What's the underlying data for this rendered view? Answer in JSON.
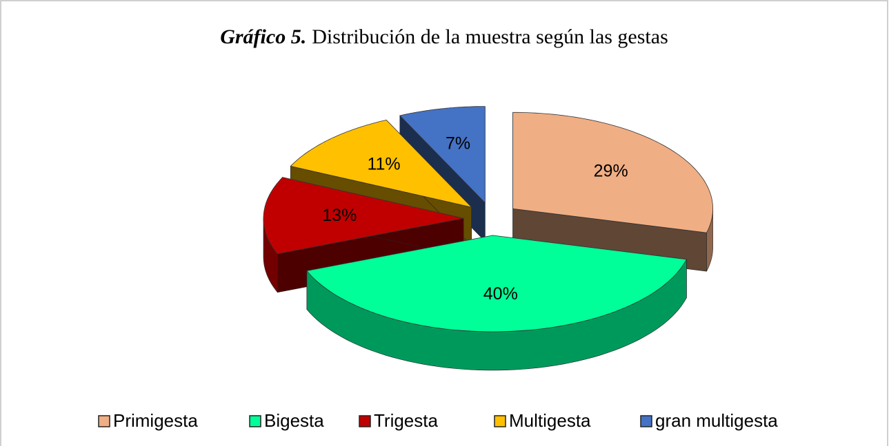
{
  "chart_data": {
    "type": "pie3d",
    "title_prefix": "Gráfico 5.",
    "title": "Distribución de la muestra según las gestas",
    "categories": [
      "Primigesta",
      "Bigesta",
      "Trigesta",
      "Multigesta",
      "gran multigesta"
    ],
    "values": [
      29,
      40,
      13,
      11,
      7
    ],
    "value_labels": [
      "29%",
      "40%",
      "13%",
      "11%",
      "7%"
    ],
    "colors": [
      "#f0ae84",
      "#00ff99",
      "#c00000",
      "#ffc000",
      "#4472c4"
    ],
    "legend": "bottom"
  }
}
